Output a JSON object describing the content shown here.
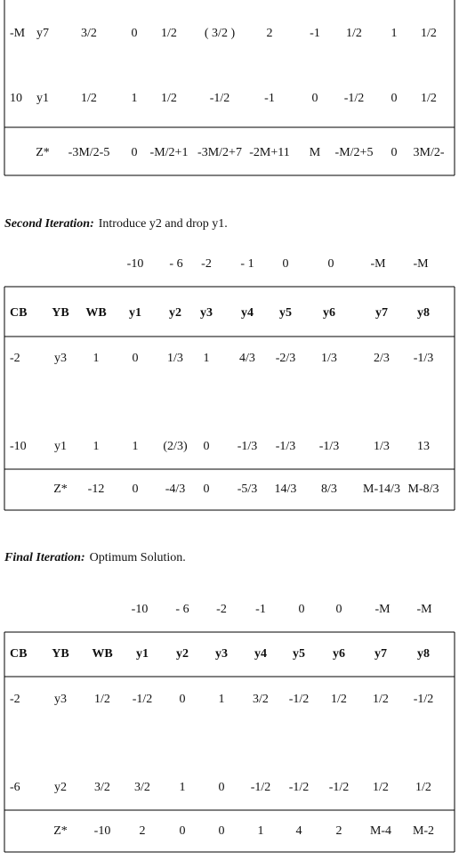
{
  "sections": [
    {
      "rows": [
        [
          "-M",
          "y7",
          "3/2",
          "0",
          "1/2",
          "( 3/2 )",
          "2",
          "-1",
          "1/2",
          "1",
          "1/2"
        ],
        [
          "10",
          "y1",
          "1/2",
          "1",
          "1/2",
          "-1/2",
          "-1",
          "0",
          "-1/2",
          "0",
          "1/2"
        ]
      ],
      "total_row": [
        "Z*",
        "-3M/2-5",
        "0",
        "-M/2+1",
        "-3M/2+7",
        "-2M+11",
        "M",
        "-M/2+5",
        "0",
        "3M/2-"
      ]
    },
    {
      "heading": {
        "label": "Second Iteration:",
        "text": "Introduce y2 and drop y1."
      },
      "costs": [
        "-10",
        "- 6",
        "-2",
        "- 1",
        "0",
        "0",
        "-M",
        "-M"
      ],
      "header": [
        "CB",
        "YB",
        "WB",
        "y1",
        "y2",
        "y3",
        "y4",
        "y5",
        "y6",
        "y7",
        "y8"
      ],
      "rows": [
        [
          "-2",
          "y3",
          "1",
          "0",
          "1/3",
          "1",
          "4/3",
          "-2/3",
          "1/3",
          "2/3",
          "-1/3"
        ],
        [
          "-10",
          "y1",
          "1",
          "1",
          "(2/3)",
          "0",
          "-1/3",
          "-1/3",
          "-1/3",
          "1/3",
          "13"
        ]
      ],
      "total_row": [
        "Z*",
        "-12",
        "0",
        "-4/3",
        "0",
        "-5/3",
        "14/3",
        "8/3",
        "M-14/3",
        "M-8/3"
      ]
    },
    {
      "heading": {
        "label": "Final Iteration:",
        "text": "Optimum Solution."
      },
      "costs": [
        "-10",
        "- 6",
        "-2",
        "-1",
        "0",
        "0",
        "-M",
        "-M"
      ],
      "header": [
        "CB",
        "YB",
        "WB",
        "y1",
        "y2",
        "y3",
        "y4",
        "y5",
        "y6",
        "y7",
        "y8"
      ],
      "rows": [
        [
          "-2",
          "y3",
          "1/2",
          "-1/2",
          "0",
          "1",
          "3/2",
          "-1/2",
          "1/2",
          "1/2",
          "-1/2"
        ],
        [
          "-6",
          "y2",
          "3/2",
          "3/2",
          "1",
          "0",
          "-1/2",
          "-1/2",
          "-1/2",
          "1/2",
          "1/2"
        ]
      ],
      "total_row": [
        "Z*",
        "-10",
        "2",
        "0",
        "0",
        "1",
        "4",
        "2",
        "M-4",
        "M-2"
      ]
    }
  ]
}
